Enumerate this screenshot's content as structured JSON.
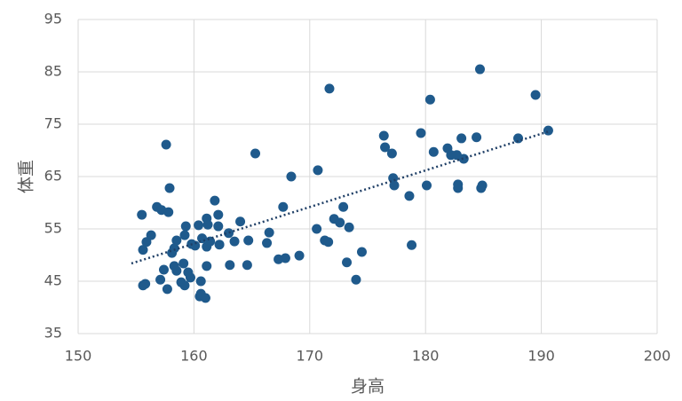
{
  "chart_data": {
    "type": "scatter",
    "x_label": "身高",
    "y_label": "体重",
    "color": "#1f5a8c",
    "trendline_color": "#1f3f66",
    "grid": true,
    "xlim": [
      150,
      200
    ],
    "ylim": [
      35,
      95
    ],
    "xticks": [
      150,
      160,
      170,
      180,
      190,
      200
    ],
    "yticks": [
      35,
      45,
      55,
      65,
      75,
      85,
      95
    ],
    "x": [
      155.5,
      155.9,
      155.6,
      156.3,
      155.6,
      155.8,
      156.8,
      157.2,
      157.8,
      157.6,
      157.9,
      157.1,
      157.4,
      157.7,
      158.1,
      158.3,
      158.5,
      158.3,
      158.5,
      158.9,
      159.2,
      159.1,
      159.2,
      159.3,
      159.5,
      159.7,
      159.8,
      160.1,
      160.4,
      160.5,
      160.6,
      160.6,
      160.7,
      161.0,
      161.1,
      161.2,
      161.1,
      161.1,
      161.4,
      161.8,
      162.1,
      162.1,
      162.2,
      163.0,
      163.1,
      163.5,
      164.0,
      164.7,
      164.6,
      165.3,
      166.3,
      166.5,
      167.3,
      167.7,
      167.9,
      168.4,
      169.1,
      170.6,
      170.7,
      171.3,
      171.6,
      171.7,
      172.1,
      172.6,
      172.9,
      173.4,
      173.2,
      174.0,
      174.5,
      176.4,
      176.5,
      177.1,
      177.2,
      177.3,
      178.6,
      178.8,
      179.6,
      180.1,
      180.4,
      180.7,
      181.9,
      182.2,
      182.7,
      182.8,
      182.8,
      183.1,
      183.3,
      184.4,
      184.7,
      184.8,
      184.9,
      188.0,
      189.5,
      190.6
    ],
    "values": [
      57.7,
      52.5,
      51.0,
      53.8,
      44.2,
      44.5,
      59.2,
      58.6,
      58.2,
      71.1,
      62.8,
      45.3,
      47.2,
      43.5,
      50.4,
      51.3,
      52.8,
      47.9,
      47.0,
      44.8,
      44.2,
      48.4,
      53.8,
      55.5,
      46.7,
      45.7,
      52.1,
      51.8,
      55.7,
      42.1,
      45.0,
      42.6,
      53.2,
      41.8,
      57.0,
      55.8,
      51.6,
      47.9,
      52.6,
      60.4,
      57.7,
      55.5,
      52.0,
      54.2,
      48.1,
      52.6,
      56.4,
      52.8,
      48.1,
      69.4,
      52.3,
      54.3,
      49.2,
      59.2,
      49.4,
      65.0,
      49.9,
      55.0,
      66.2,
      52.8,
      52.5,
      81.8,
      56.9,
      56.2,
      59.2,
      55.3,
      48.6,
      45.3,
      50.6,
      72.8,
      70.6,
      69.4,
      64.7,
      63.3,
      61.3,
      51.9,
      73.3,
      63.3,
      79.7,
      69.7,
      70.4,
      69.1,
      69.1,
      62.8,
      63.5,
      72.3,
      68.4,
      72.5,
      85.5,
      62.8,
      63.3,
      72.3,
      80.6,
      73.8
    ],
    "trendline": {
      "x": [
        154.6,
        190.6
      ],
      "y": [
        48.4,
        73.6
      ]
    }
  }
}
